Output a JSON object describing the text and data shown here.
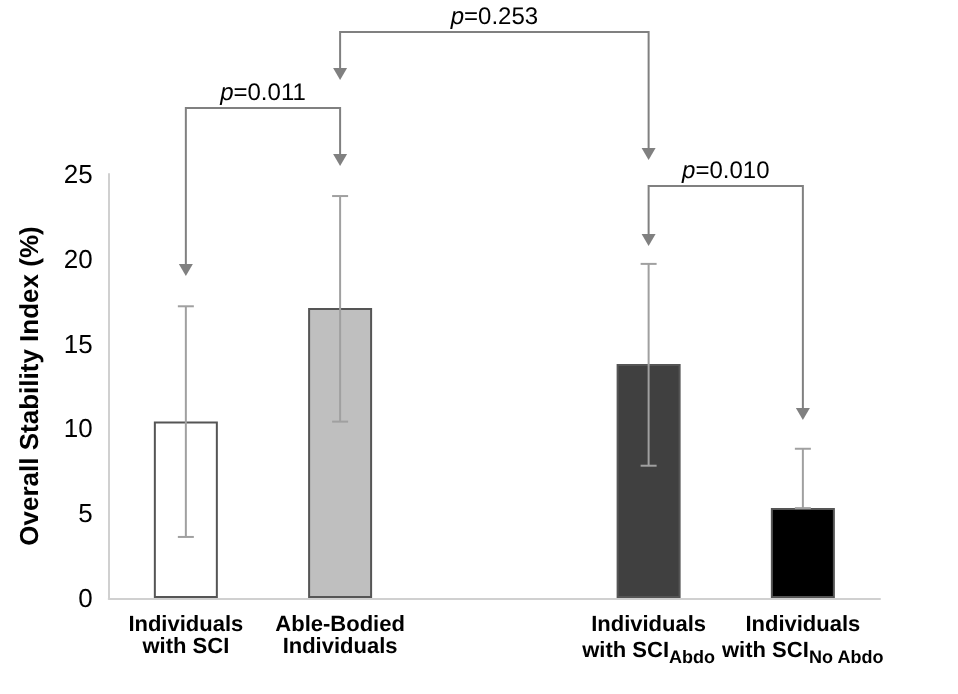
{
  "chart_data": {
    "type": "bar",
    "ylabel": "Overall Stability Index (%)",
    "categories": [
      "Individuals\nwith SCI",
      "Able-Bodied\nIndividuals",
      null,
      "Individuals\nwith SCI$_{Abdo}$",
      "Individuals\nwith SCI$_{No Abdo}$"
    ],
    "values": [
      10.4,
      17.1,
      null,
      13.8,
      5.3
    ],
    "colors": [
      "#ffffff",
      "#bfbfbf",
      null,
      "#404040",
      "#000000"
    ],
    "errors": [
      [
        3.6,
        17.2
      ],
      [
        10.4,
        23.7
      ],
      null,
      [
        7.8,
        19.7
      ],
      [
        5.3,
        8.8
      ]
    ],
    "ylim": [
      0,
      25
    ],
    "yticks": [
      0,
      5,
      10,
      15,
      20,
      25
    ],
    "grid": false,
    "annotations": [
      "p=0.011",
      "p=0.253",
      "p=0.010"
    ]
  }
}
